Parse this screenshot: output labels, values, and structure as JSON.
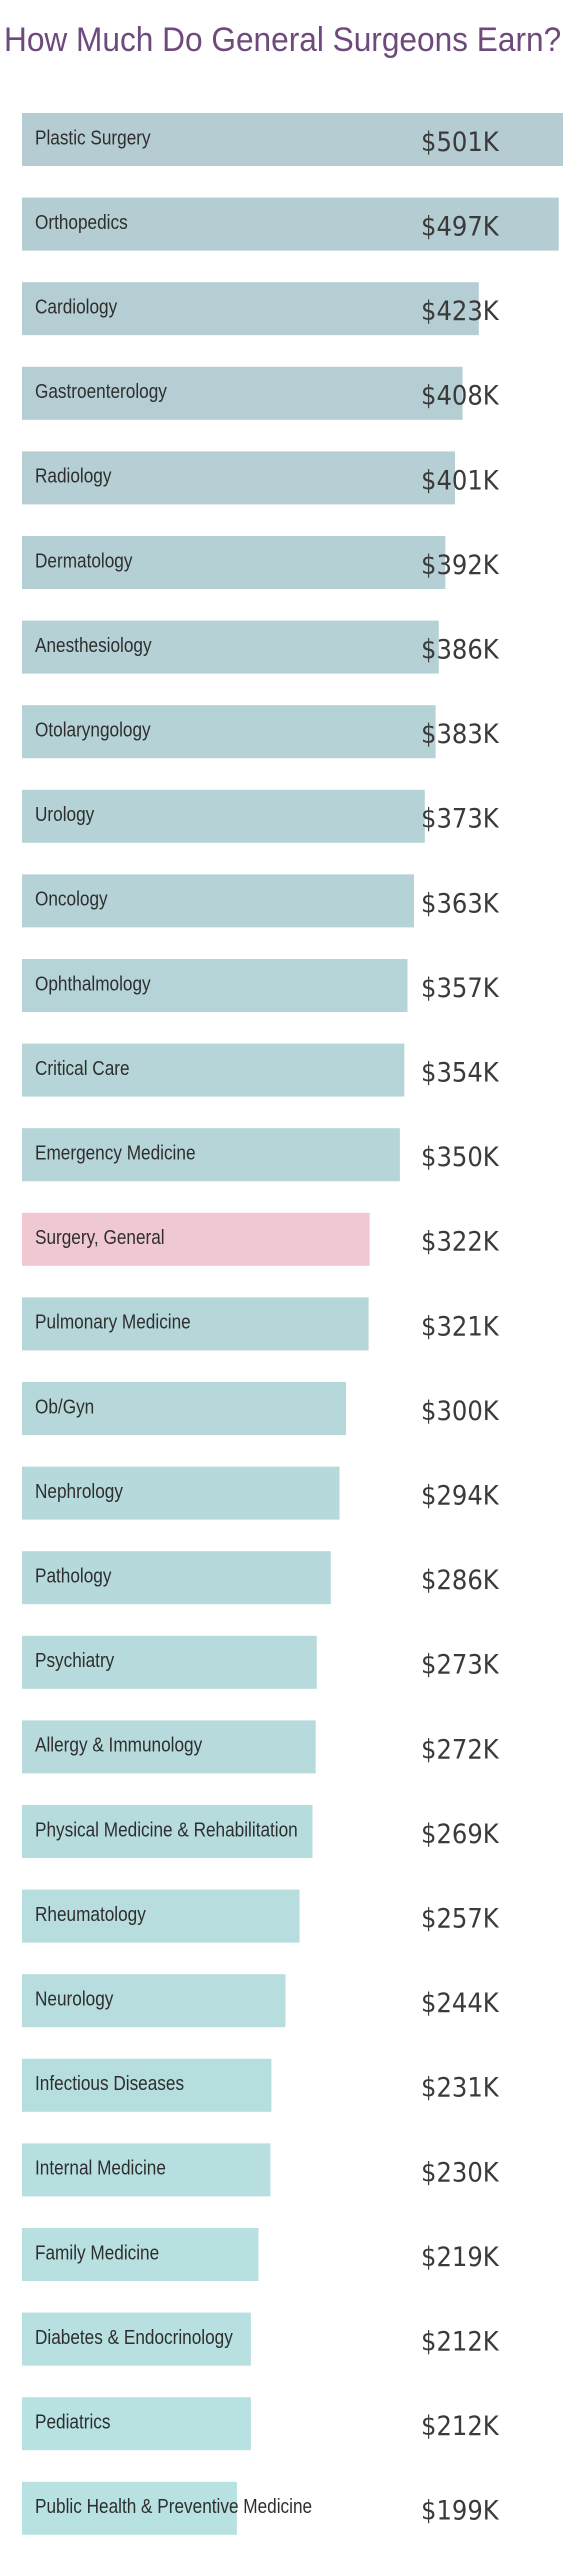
{
  "title": "How Much Do General Surgeons Earn?",
  "chart_data": {
    "type": "bar",
    "orientation": "horizontal",
    "title": "How Much Do General Surgeons Earn?",
    "unit_prefix": "$",
    "unit_suffix": "K",
    "highlight": "Surgery, General",
    "colors": {
      "bar": "#b7d7dc",
      "bar_top": "#b4ccd2",
      "bar_bottom": "#b8e2e2",
      "highlight_bar": "#f0c8d2",
      "highlight_text": "#c44a6e",
      "label_text": "#2e2e2e",
      "value_text": "#3a3a3a",
      "title_text": "#6d4a7b"
    },
    "categories": [
      "Plastic Surgery",
      "Orthopedics",
      "Cardiology",
      "Gastroenterology",
      "Radiology",
      "Dermatology",
      "Anesthesiology",
      "Otolaryngology",
      "Urology",
      "Oncology",
      "Ophthalmology",
      "Critical Care",
      "Emergency Medicine",
      "Surgery, General",
      "Pulmonary Medicine",
      "Ob/Gyn",
      "Nephrology",
      "Pathology",
      "Psychiatry",
      "Allergy & Immunology",
      "Physical Medicine & Rehabilitation",
      "Rheumatology",
      "Neurology",
      "Infectious Diseases",
      "Internal Medicine",
      "Family Medicine",
      "Diabetes & Endocrinology",
      "Pediatrics",
      "Public Health & Preventive Medicine"
    ],
    "values": [
      501,
      497,
      423,
      408,
      401,
      392,
      386,
      383,
      373,
      363,
      357,
      354,
      350,
      322,
      321,
      300,
      294,
      286,
      273,
      272,
      269,
      257,
      244,
      231,
      230,
      219,
      212,
      212,
      199
    ],
    "value_labels": [
      "$501K",
      "$497K",
      "$423K",
      "$408K",
      "$401K",
      "$392K",
      "$386K",
      "$383K",
      "$373K",
      "$363K",
      "$357K",
      "$354K",
      "$350K",
      "$322K",
      "$321K",
      "$300K",
      "$294K",
      "$286K",
      "$273K",
      "$272K",
      "$269K",
      "$257K",
      "$244K",
      "$231K",
      "$230K",
      "$219K",
      "$212K",
      "$212K",
      "$199K"
    ]
  }
}
